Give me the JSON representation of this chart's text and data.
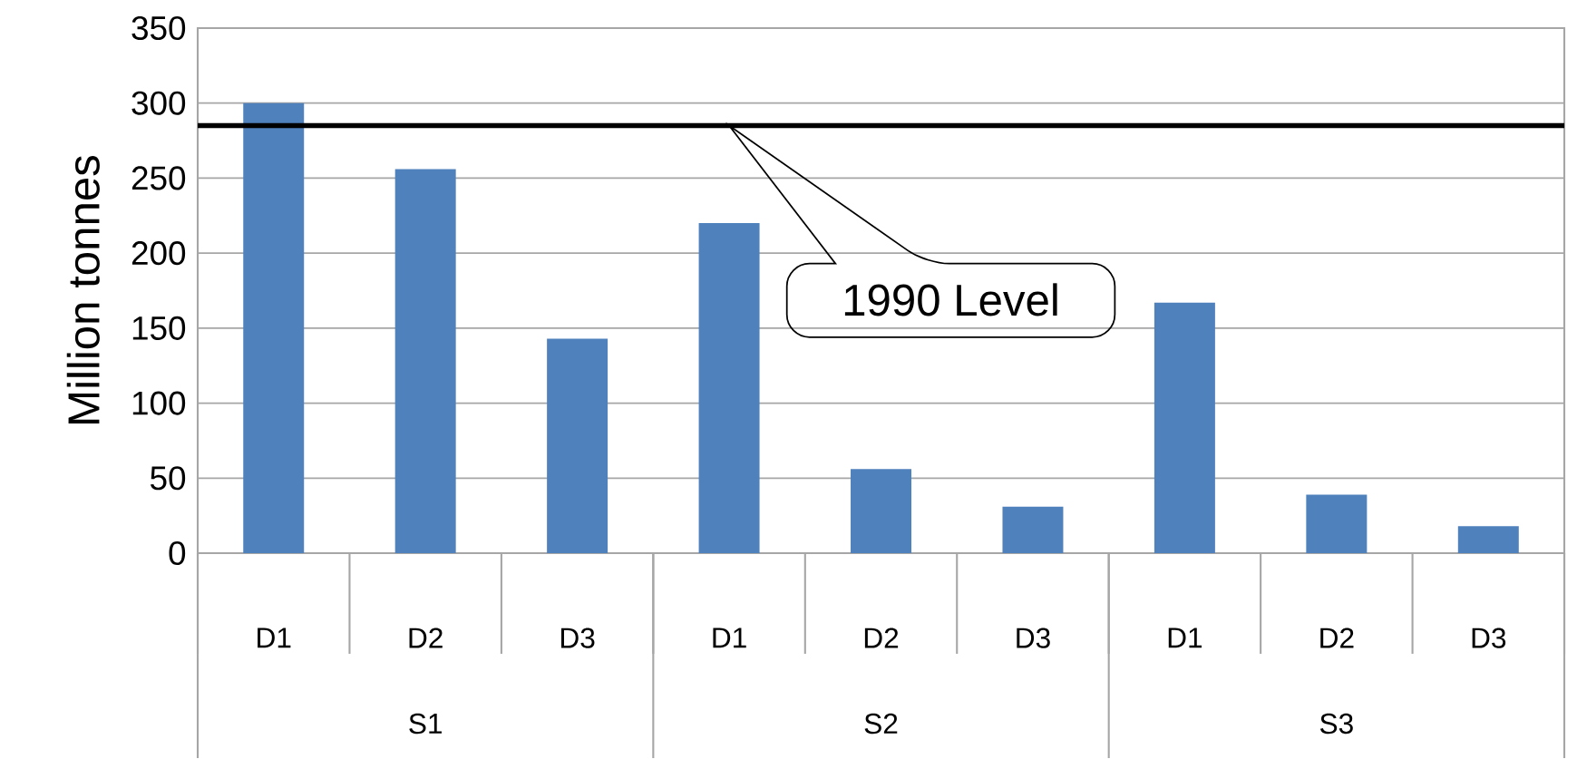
{
  "chart_data": {
    "type": "bar",
    "ylabel": "Million tonnes",
    "categories": [
      "D1",
      "D2",
      "D3",
      "D1",
      "D2",
      "D3",
      "D1",
      "D2",
      "D3"
    ],
    "values": [
      300,
      256,
      143,
      220,
      56,
      31,
      167,
      39,
      18
    ],
    "color": "#4f81bd",
    "ylim": [
      0,
      350
    ],
    "yticks": [
      0,
      50,
      100,
      150,
      200,
      250,
      300,
      350
    ],
    "grid": "y",
    "ref_lines": [
      {
        "axis": "y",
        "value": 285,
        "label": "1990 Level",
        "color": "#000000"
      }
    ],
    "annotations": [
      "S1",
      "S2",
      "S3"
    ]
  }
}
